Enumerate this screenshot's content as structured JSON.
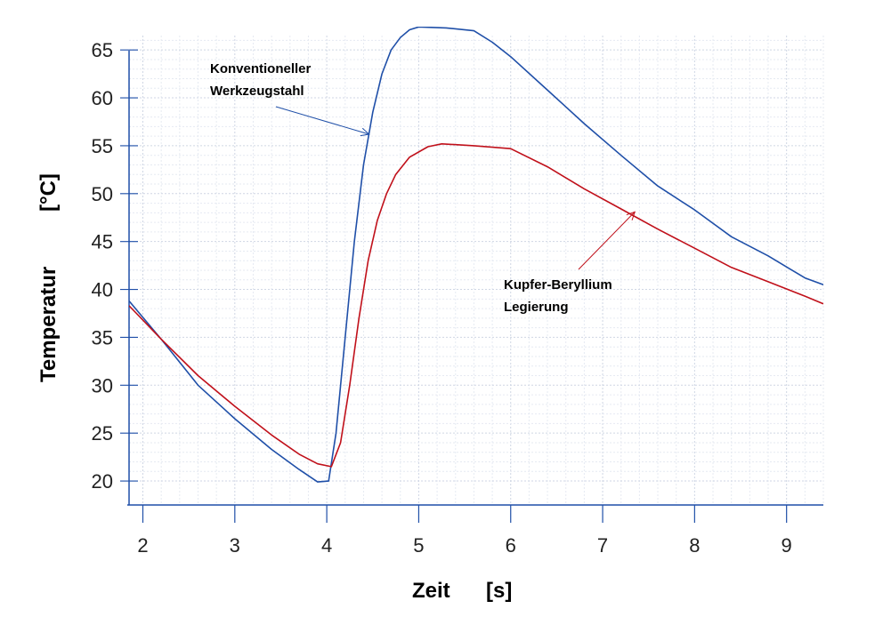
{
  "chart_data": {
    "type": "line",
    "title": "",
    "xlabel": "Zeit",
    "xunit": "[s]",
    "ylabel": "Temperatur",
    "yunit": "[°C]",
    "xlim": [
      1.85,
      9.4
    ],
    "ylim": [
      17.5,
      66.5
    ],
    "x_ticks": [
      "2",
      "3",
      "4",
      "5",
      "6",
      "7",
      "8",
      "9"
    ],
    "y_ticks": [
      "20",
      "25",
      "30",
      "35",
      "40",
      "45",
      "50",
      "55",
      "60",
      "65"
    ],
    "grid": true,
    "series": [
      {
        "name": "Konventioneller Werkzeugstahl",
        "color": "#1f4fa8",
        "points": [
          [
            1.85,
            38.8
          ],
          [
            2.2,
            34.8
          ],
          [
            2.6,
            30.0
          ],
          [
            3.0,
            26.5
          ],
          [
            3.4,
            23.3
          ],
          [
            3.7,
            21.2
          ],
          [
            3.9,
            19.9
          ],
          [
            4.02,
            20.0
          ],
          [
            4.1,
            25.0
          ],
          [
            4.2,
            35.0
          ],
          [
            4.3,
            45.0
          ],
          [
            4.4,
            53.0
          ],
          [
            4.5,
            58.5
          ],
          [
            4.6,
            62.5
          ],
          [
            4.7,
            65.0
          ],
          [
            4.8,
            66.3
          ],
          [
            4.9,
            67.1
          ],
          [
            5.0,
            67.4
          ],
          [
            5.3,
            67.3
          ],
          [
            5.6,
            67.0
          ],
          [
            5.8,
            65.8
          ],
          [
            6.0,
            64.3
          ],
          [
            6.4,
            60.8
          ],
          [
            6.8,
            57.3
          ],
          [
            7.2,
            54.0
          ],
          [
            7.6,
            50.8
          ],
          [
            8.0,
            48.3
          ],
          [
            8.4,
            45.5
          ],
          [
            8.8,
            43.5
          ],
          [
            9.2,
            41.2
          ],
          [
            9.4,
            40.5
          ]
        ]
      },
      {
        "name": "Kupfer-Beryllium Legierung",
        "color": "#c0101a",
        "points": [
          [
            1.85,
            38.3
          ],
          [
            2.2,
            34.8
          ],
          [
            2.6,
            31.0
          ],
          [
            3.0,
            27.8
          ],
          [
            3.4,
            24.8
          ],
          [
            3.7,
            22.8
          ],
          [
            3.9,
            21.8
          ],
          [
            4.05,
            21.5
          ],
          [
            4.15,
            24.0
          ],
          [
            4.25,
            30.0
          ],
          [
            4.35,
            37.0
          ],
          [
            4.45,
            43.0
          ],
          [
            4.55,
            47.2
          ],
          [
            4.65,
            50.0
          ],
          [
            4.75,
            52.0
          ],
          [
            4.9,
            53.8
          ],
          [
            5.1,
            54.9
          ],
          [
            5.25,
            55.2
          ],
          [
            5.6,
            55.0
          ],
          [
            6.0,
            54.7
          ],
          [
            6.4,
            52.8
          ],
          [
            6.8,
            50.5
          ],
          [
            7.2,
            48.4
          ],
          [
            7.6,
            46.3
          ],
          [
            8.0,
            44.3
          ],
          [
            8.4,
            42.3
          ],
          [
            8.8,
            40.8
          ],
          [
            9.2,
            39.3
          ],
          [
            9.4,
            38.5
          ]
        ]
      }
    ],
    "annotations": [
      {
        "lines": [
          "Konventioneller",
          "Werkzeugstahl"
        ],
        "series": 0
      },
      {
        "lines": [
          "Kupfer-Beryllium",
          "Legierung"
        ],
        "series": 1
      }
    ]
  }
}
